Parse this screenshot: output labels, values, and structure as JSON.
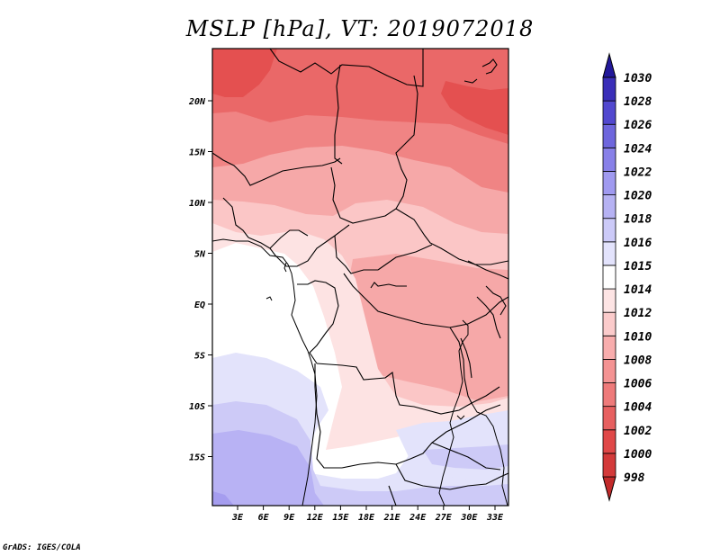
{
  "title": "MSLP [hPa], VT: 2019072018",
  "credit": "GrADS: IGES/COLA",
  "lon_labels": [
    "3E",
    "6E",
    "9E",
    "12E",
    "15E",
    "18E",
    "21E",
    "24E",
    "27E",
    "30E",
    "33E"
  ],
  "lat_labels": [
    "20N",
    "15N",
    "10N",
    "5N",
    "EQ",
    "5S",
    "10S",
    "15S"
  ],
  "colorbar": {
    "levels": [
      "998",
      "1000",
      "1002",
      "1004",
      "1006",
      "1008",
      "1010",
      "1012",
      "1014",
      "1015",
      "1016",
      "1018",
      "1020",
      "1022",
      "1024",
      "1026",
      "1028",
      "1030"
    ],
    "colors": [
      "#c22a2a",
      "#d33a3a",
      "#e04848",
      "#e76060",
      "#ee7a7a",
      "#f49393",
      "#f8adad",
      "#fbcbcb",
      "#fde4e4",
      "#ffffff",
      "#e3e3fc",
      "#cccaf8",
      "#b6b2f3",
      "#a09af0",
      "#8880e8",
      "#6e66dd",
      "#5248cf",
      "#3a2eb8",
      "#22189a"
    ]
  },
  "map_colors": {
    "p1004": "#e45050",
    "p1006": "#ea6868",
    "p1008": "#f08484",
    "p1010": "#f6a8a8",
    "p1012": "#fbc6c6",
    "p1014": "#fde3e3",
    "p1015": "#ffffff",
    "p1016": "#e3e3fb",
    "p1018": "#cdcaf7",
    "p1020": "#b8b2f4",
    "p1022": "#a59def"
  }
}
